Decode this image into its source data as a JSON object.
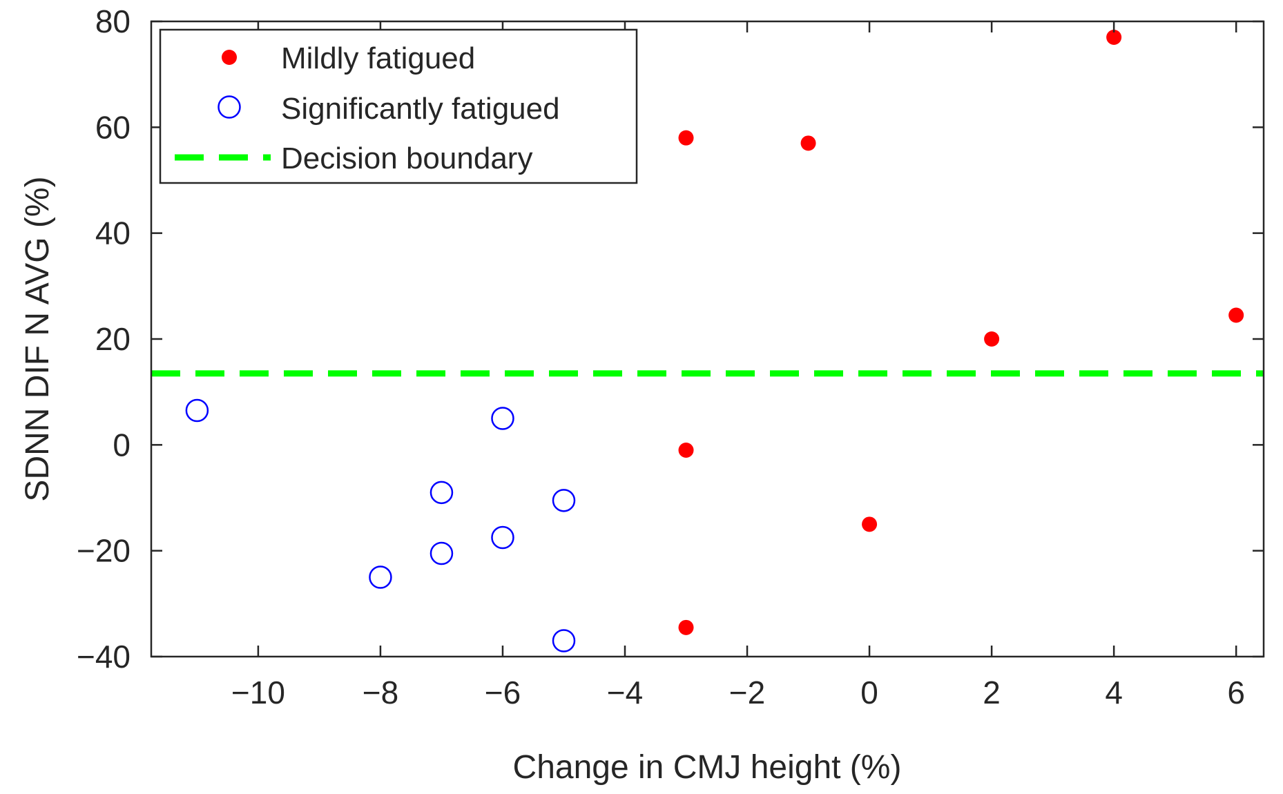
{
  "chart_data": {
    "type": "scatter",
    "title": "",
    "xlabel": "Change in CMJ height (%)",
    "ylabel": "SDNN DIF N AVG (%)",
    "xlim": [
      -11.75,
      6.45
    ],
    "ylim": [
      -40,
      80
    ],
    "xticks": [
      -10,
      -8,
      -6,
      -4,
      -2,
      0,
      2,
      4,
      6
    ],
    "yticks": [
      -40,
      -20,
      0,
      20,
      40,
      60,
      80
    ],
    "xtick_labels": [
      "−10",
      "−8",
      "−6",
      "−4",
      "−2",
      "0",
      "2",
      "4",
      "6"
    ],
    "ytick_labels": [
      "−40",
      "−20",
      "0",
      "20",
      "40",
      "60",
      "80"
    ],
    "grid": false,
    "legend_position": "top-left",
    "series": [
      {
        "name": "Mildly fatigued",
        "marker": "filled-dot",
        "color": "#ff0000",
        "points": [
          {
            "x": -3,
            "y": 58
          },
          {
            "x": -1,
            "y": 57
          },
          {
            "x": 4,
            "y": 77
          },
          {
            "x": 2,
            "y": 20
          },
          {
            "x": 6,
            "y": 24.5
          },
          {
            "x": -3,
            "y": -1
          },
          {
            "x": 0,
            "y": -15
          },
          {
            "x": -3,
            "y": -34.5
          }
        ]
      },
      {
        "name": "Significantly fatigued",
        "marker": "open-circle",
        "color": "#0000ff",
        "points": [
          {
            "x": -11,
            "y": 6.5
          },
          {
            "x": -6,
            "y": 5
          },
          {
            "x": -7,
            "y": -9
          },
          {
            "x": -5,
            "y": -10.5
          },
          {
            "x": -6,
            "y": -17.5
          },
          {
            "x": -7,
            "y": -20.5
          },
          {
            "x": -8,
            "y": -25
          },
          {
            "x": -5,
            "y": -37
          }
        ]
      },
      {
        "name": "Decision boundary",
        "marker": "dashed-line",
        "color": "#00ff00",
        "y": 13.5
      }
    ]
  }
}
